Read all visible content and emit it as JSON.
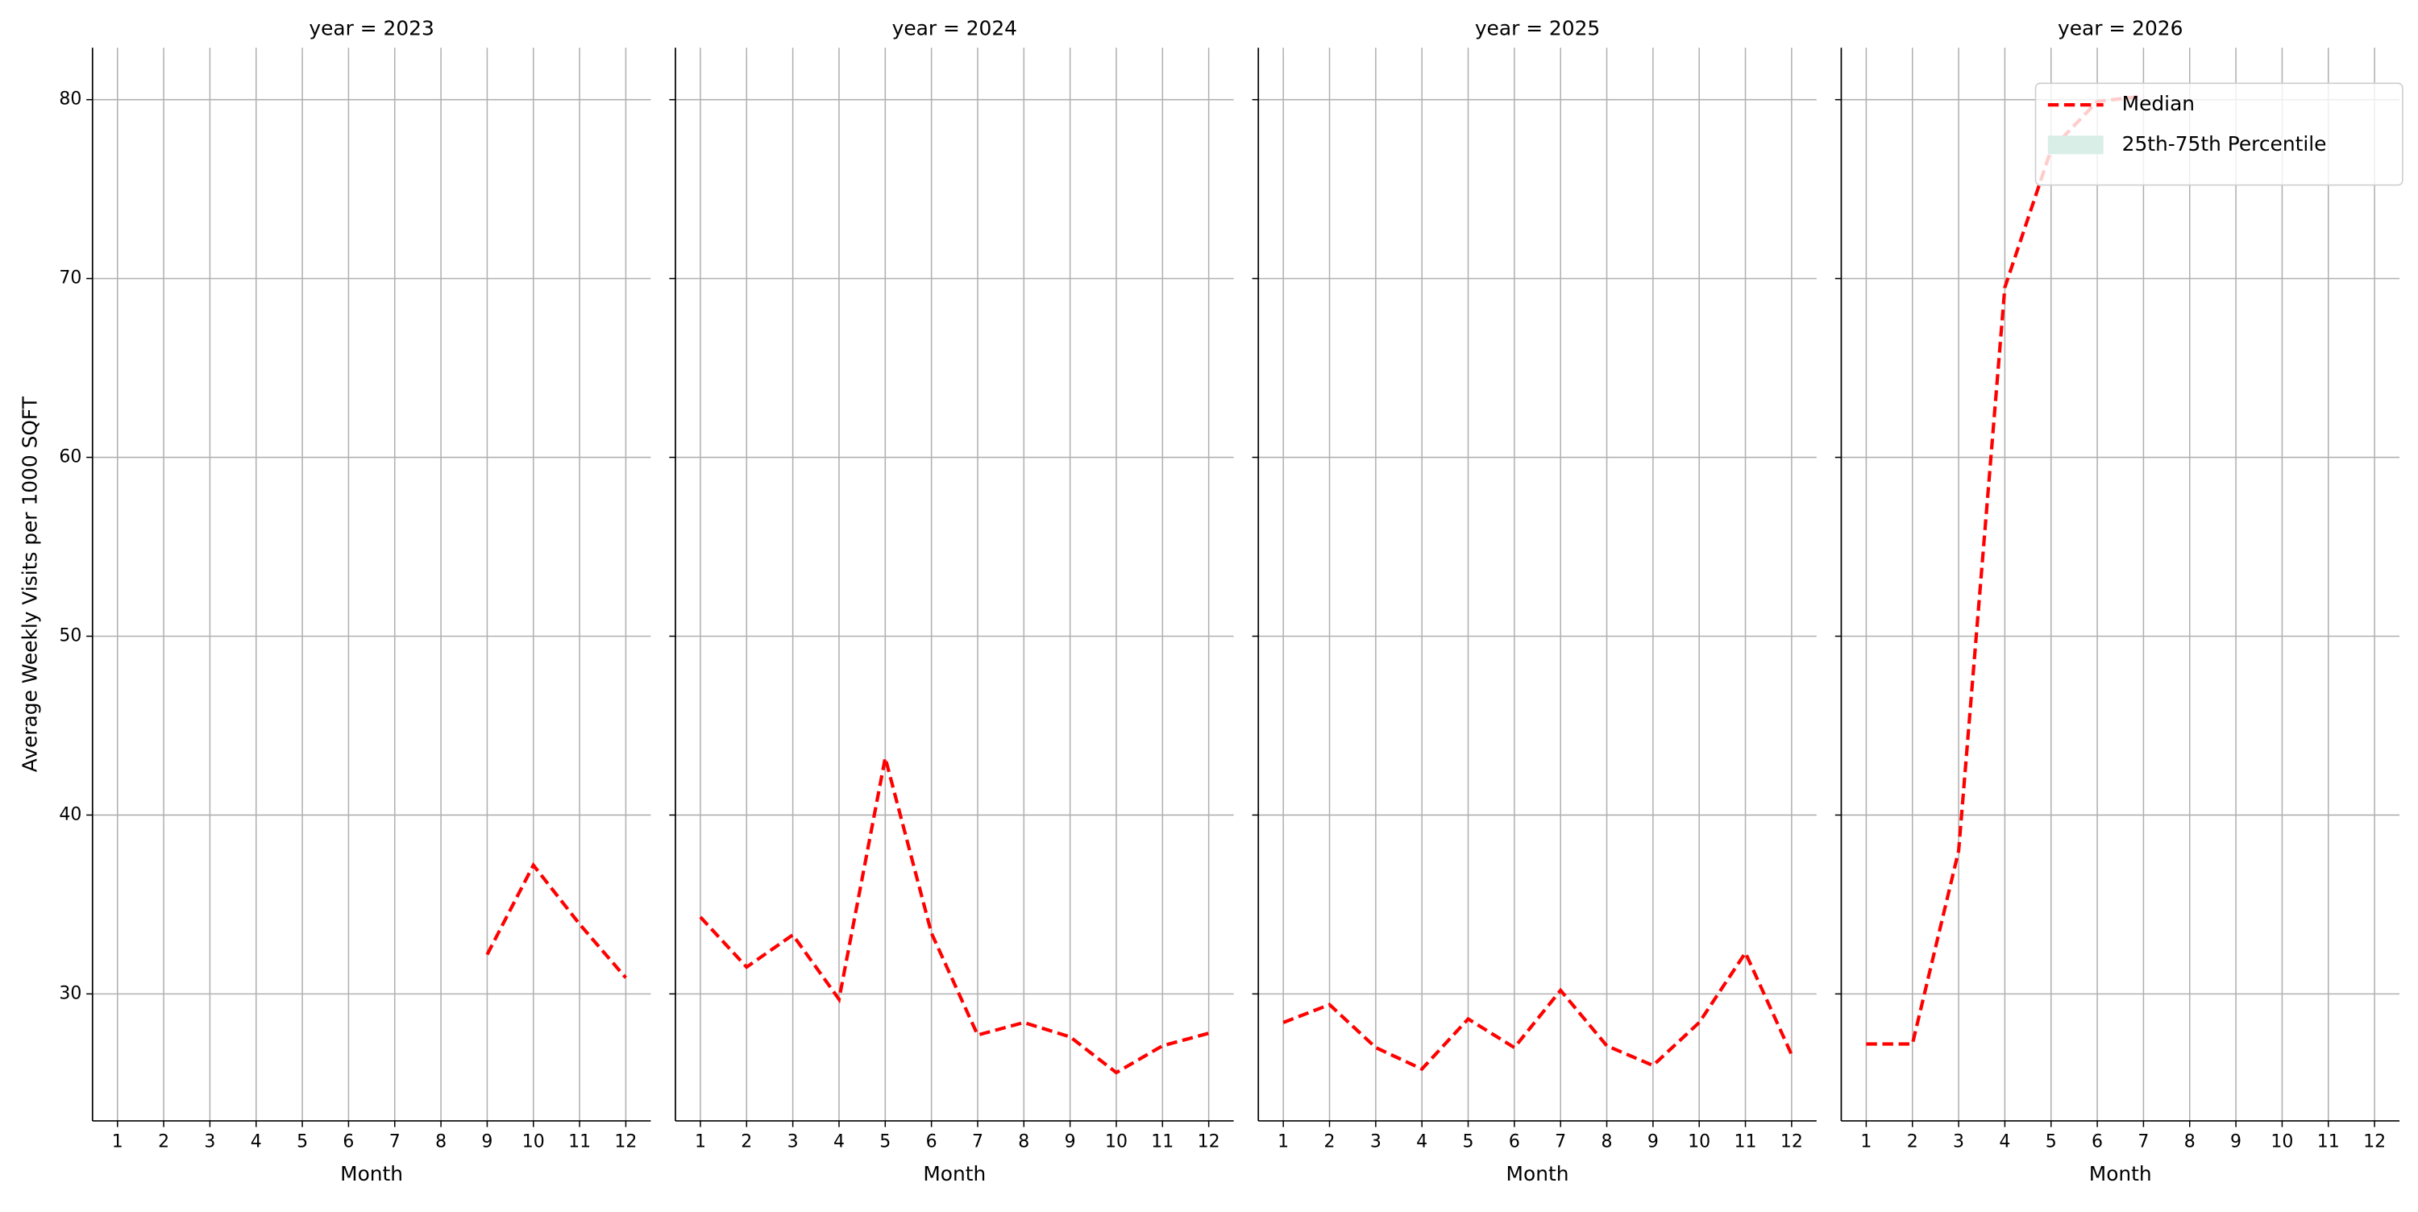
{
  "chart_data": [
    {
      "type": "line",
      "title": "year = 2023",
      "xlabel": "Month",
      "ylabel": "Average Weekly Visits per 1000 SQFT",
      "x": [
        9,
        10,
        11,
        12
      ],
      "series": [
        {
          "name": "Median",
          "color": "#ff0000",
          "values": [
            32.2,
            37.2,
            33.9,
            30.9
          ]
        }
      ],
      "xlim": [
        0.46,
        12.54
      ],
      "ylim": [
        22.9,
        82.9
      ],
      "xticks": [
        1,
        2,
        3,
        4,
        5,
        6,
        7,
        8,
        9,
        10,
        11,
        12
      ],
      "yticks": [
        30,
        40,
        50,
        60,
        70,
        80
      ],
      "grid": true
    },
    {
      "type": "line",
      "title": "year = 2024",
      "xlabel": "Month",
      "x": [
        1,
        2,
        3,
        4,
        5,
        6,
        7,
        8,
        9,
        10,
        11,
        12
      ],
      "series": [
        {
          "name": "Median",
          "color": "#ff0000",
          "values": [
            34.3,
            31.5,
            33.3,
            29.7,
            43.2,
            33.4,
            27.7,
            28.4,
            27.6,
            25.6,
            27.1,
            27.8
          ]
        }
      ],
      "xlim": [
        0.46,
        12.54
      ],
      "ylim": [
        22.9,
        82.9
      ],
      "xticks": [
        1,
        2,
        3,
        4,
        5,
        6,
        7,
        8,
        9,
        10,
        11,
        12
      ],
      "yticks": [
        30,
        40,
        50,
        60,
        70,
        80
      ],
      "grid": true
    },
    {
      "type": "line",
      "title": "year = 2025",
      "xlabel": "Month",
      "x": [
        1,
        2,
        3,
        4,
        5,
        6,
        7,
        8,
        9,
        10,
        11,
        12
      ],
      "series": [
        {
          "name": "Median",
          "color": "#ff0000",
          "values": [
            28.4,
            29.4,
            27.0,
            25.8,
            28.6,
            27.0,
            30.2,
            27.1,
            26.0,
            28.4,
            32.3,
            26.6
          ]
        }
      ],
      "xlim": [
        0.46,
        12.54
      ],
      "ylim": [
        22.9,
        82.9
      ],
      "xticks": [
        1,
        2,
        3,
        4,
        5,
        6,
        7,
        8,
        9,
        10,
        11,
        12
      ],
      "yticks": [
        30,
        40,
        50,
        60,
        70,
        80
      ],
      "grid": true
    },
    {
      "type": "line",
      "title": "year = 2026",
      "xlabel": "Month",
      "x": [
        1,
        2,
        3,
        4,
        5,
        6,
        7
      ],
      "series": [
        {
          "name": "Median",
          "color": "#ff0000",
          "values": [
            27.2,
            27.2,
            38.0,
            69.5,
            77.2,
            79.9,
            80.2
          ]
        }
      ],
      "bands": [
        {
          "name": "25th-75th Percentile",
          "color": "#d8eee6"
        }
      ],
      "xlim": [
        0.46,
        12.54
      ],
      "ylim": [
        22.9,
        82.9
      ],
      "xticks": [
        1,
        2,
        3,
        4,
        5,
        6,
        7,
        8,
        9,
        10,
        11,
        12
      ],
      "yticks": [
        30,
        40,
        50,
        60,
        70,
        80
      ],
      "grid": true,
      "legend": "upper right"
    }
  ]
}
